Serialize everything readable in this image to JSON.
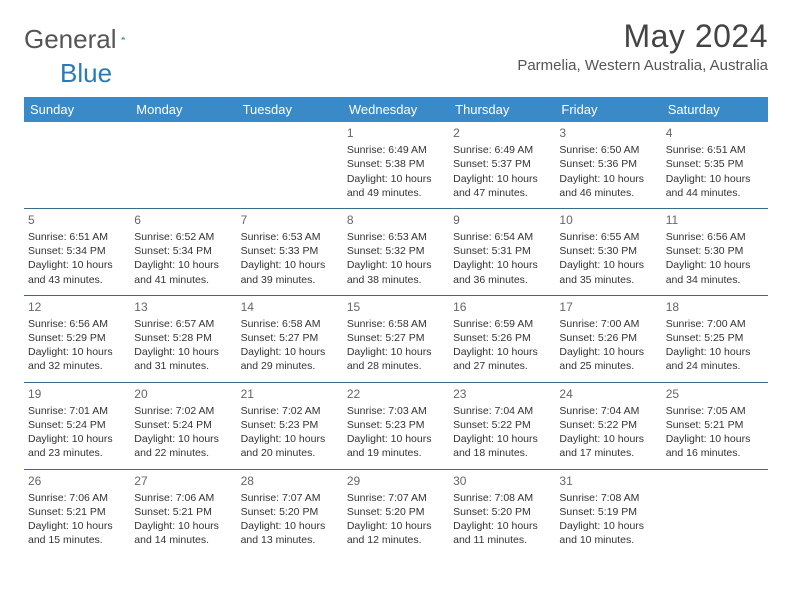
{
  "logo": {
    "word1": "General",
    "word2": "Blue"
  },
  "title": "May 2024",
  "location": "Parmelia, Western Australia, Australia",
  "colors": {
    "header_bg": "#3a8ac8",
    "header_fg": "#ffffff",
    "row_border": "#3a6a8c",
    "logo_gray": "#555555",
    "logo_blue": "#2a7ab9"
  },
  "day_headers": [
    "Sunday",
    "Monday",
    "Tuesday",
    "Wednesday",
    "Thursday",
    "Friday",
    "Saturday"
  ],
  "weeks": [
    [
      null,
      null,
      null,
      {
        "n": "1",
        "sr": "Sunrise: 6:49 AM",
        "ss": "Sunset: 5:38 PM",
        "dl1": "Daylight: 10 hours",
        "dl2": "and 49 minutes."
      },
      {
        "n": "2",
        "sr": "Sunrise: 6:49 AM",
        "ss": "Sunset: 5:37 PM",
        "dl1": "Daylight: 10 hours",
        "dl2": "and 47 minutes."
      },
      {
        "n": "3",
        "sr": "Sunrise: 6:50 AM",
        "ss": "Sunset: 5:36 PM",
        "dl1": "Daylight: 10 hours",
        "dl2": "and 46 minutes."
      },
      {
        "n": "4",
        "sr": "Sunrise: 6:51 AM",
        "ss": "Sunset: 5:35 PM",
        "dl1": "Daylight: 10 hours",
        "dl2": "and 44 minutes."
      }
    ],
    [
      {
        "n": "5",
        "sr": "Sunrise: 6:51 AM",
        "ss": "Sunset: 5:34 PM",
        "dl1": "Daylight: 10 hours",
        "dl2": "and 43 minutes."
      },
      {
        "n": "6",
        "sr": "Sunrise: 6:52 AM",
        "ss": "Sunset: 5:34 PM",
        "dl1": "Daylight: 10 hours",
        "dl2": "and 41 minutes."
      },
      {
        "n": "7",
        "sr": "Sunrise: 6:53 AM",
        "ss": "Sunset: 5:33 PM",
        "dl1": "Daylight: 10 hours",
        "dl2": "and 39 minutes."
      },
      {
        "n": "8",
        "sr": "Sunrise: 6:53 AM",
        "ss": "Sunset: 5:32 PM",
        "dl1": "Daylight: 10 hours",
        "dl2": "and 38 minutes."
      },
      {
        "n": "9",
        "sr": "Sunrise: 6:54 AM",
        "ss": "Sunset: 5:31 PM",
        "dl1": "Daylight: 10 hours",
        "dl2": "and 36 minutes."
      },
      {
        "n": "10",
        "sr": "Sunrise: 6:55 AM",
        "ss": "Sunset: 5:30 PM",
        "dl1": "Daylight: 10 hours",
        "dl2": "and 35 minutes."
      },
      {
        "n": "11",
        "sr": "Sunrise: 6:56 AM",
        "ss": "Sunset: 5:30 PM",
        "dl1": "Daylight: 10 hours",
        "dl2": "and 34 minutes."
      }
    ],
    [
      {
        "n": "12",
        "sr": "Sunrise: 6:56 AM",
        "ss": "Sunset: 5:29 PM",
        "dl1": "Daylight: 10 hours",
        "dl2": "and 32 minutes."
      },
      {
        "n": "13",
        "sr": "Sunrise: 6:57 AM",
        "ss": "Sunset: 5:28 PM",
        "dl1": "Daylight: 10 hours",
        "dl2": "and 31 minutes."
      },
      {
        "n": "14",
        "sr": "Sunrise: 6:58 AM",
        "ss": "Sunset: 5:27 PM",
        "dl1": "Daylight: 10 hours",
        "dl2": "and 29 minutes."
      },
      {
        "n": "15",
        "sr": "Sunrise: 6:58 AM",
        "ss": "Sunset: 5:27 PM",
        "dl1": "Daylight: 10 hours",
        "dl2": "and 28 minutes."
      },
      {
        "n": "16",
        "sr": "Sunrise: 6:59 AM",
        "ss": "Sunset: 5:26 PM",
        "dl1": "Daylight: 10 hours",
        "dl2": "and 27 minutes."
      },
      {
        "n": "17",
        "sr": "Sunrise: 7:00 AM",
        "ss": "Sunset: 5:26 PM",
        "dl1": "Daylight: 10 hours",
        "dl2": "and 25 minutes."
      },
      {
        "n": "18",
        "sr": "Sunrise: 7:00 AM",
        "ss": "Sunset: 5:25 PM",
        "dl1": "Daylight: 10 hours",
        "dl2": "and 24 minutes."
      }
    ],
    [
      {
        "n": "19",
        "sr": "Sunrise: 7:01 AM",
        "ss": "Sunset: 5:24 PM",
        "dl1": "Daylight: 10 hours",
        "dl2": "and 23 minutes."
      },
      {
        "n": "20",
        "sr": "Sunrise: 7:02 AM",
        "ss": "Sunset: 5:24 PM",
        "dl1": "Daylight: 10 hours",
        "dl2": "and 22 minutes."
      },
      {
        "n": "21",
        "sr": "Sunrise: 7:02 AM",
        "ss": "Sunset: 5:23 PM",
        "dl1": "Daylight: 10 hours",
        "dl2": "and 20 minutes."
      },
      {
        "n": "22",
        "sr": "Sunrise: 7:03 AM",
        "ss": "Sunset: 5:23 PM",
        "dl1": "Daylight: 10 hours",
        "dl2": "and 19 minutes."
      },
      {
        "n": "23",
        "sr": "Sunrise: 7:04 AM",
        "ss": "Sunset: 5:22 PM",
        "dl1": "Daylight: 10 hours",
        "dl2": "and 18 minutes."
      },
      {
        "n": "24",
        "sr": "Sunrise: 7:04 AM",
        "ss": "Sunset: 5:22 PM",
        "dl1": "Daylight: 10 hours",
        "dl2": "and 17 minutes."
      },
      {
        "n": "25",
        "sr": "Sunrise: 7:05 AM",
        "ss": "Sunset: 5:21 PM",
        "dl1": "Daylight: 10 hours",
        "dl2": "and 16 minutes."
      }
    ],
    [
      {
        "n": "26",
        "sr": "Sunrise: 7:06 AM",
        "ss": "Sunset: 5:21 PM",
        "dl1": "Daylight: 10 hours",
        "dl2": "and 15 minutes."
      },
      {
        "n": "27",
        "sr": "Sunrise: 7:06 AM",
        "ss": "Sunset: 5:21 PM",
        "dl1": "Daylight: 10 hours",
        "dl2": "and 14 minutes."
      },
      {
        "n": "28",
        "sr": "Sunrise: 7:07 AM",
        "ss": "Sunset: 5:20 PM",
        "dl1": "Daylight: 10 hours",
        "dl2": "and 13 minutes."
      },
      {
        "n": "29",
        "sr": "Sunrise: 7:07 AM",
        "ss": "Sunset: 5:20 PM",
        "dl1": "Daylight: 10 hours",
        "dl2": "and 12 minutes."
      },
      {
        "n": "30",
        "sr": "Sunrise: 7:08 AM",
        "ss": "Sunset: 5:20 PM",
        "dl1": "Daylight: 10 hours",
        "dl2": "and 11 minutes."
      },
      {
        "n": "31",
        "sr": "Sunrise: 7:08 AM",
        "ss": "Sunset: 5:19 PM",
        "dl1": "Daylight: 10 hours",
        "dl2": "and 10 minutes."
      },
      null
    ]
  ]
}
